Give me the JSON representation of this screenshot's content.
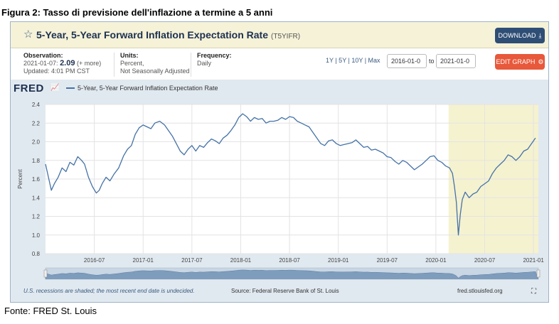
{
  "figure_title": "Figura 2: Tasso di previsione dell'inflazione a termine a 5 anni",
  "source_note": "Fonte: FRED St. Louis",
  "header": {
    "title": "5-Year, 5-Year Forward Inflation Expectation Rate",
    "series_id": "(T5YIFR)",
    "download_label": "DOWNLOAD"
  },
  "meta": {
    "observation_label": "Observation:",
    "observation_date": "2021-01-07:",
    "observation_value": "2.09",
    "observation_more": "(+ more)",
    "updated": "Updated: 4:01 PM CST",
    "units_label": "Units:",
    "units_line1": "Percent,",
    "units_line2": "Not Seasonally Adjusted",
    "frequency_label": "Frequency:",
    "frequency_value": "Daily",
    "ranges": "1Y | 5Y | 10Y | Max",
    "date_from": "2016-01-0",
    "to_label": "to",
    "date_to": "2021-01-0",
    "edit_label": "EDIT GRAPH"
  },
  "fred_logo": "FRED",
  "footer": {
    "recession_note": "U.S. recessions are shaded; the most recent end date is undecided.",
    "source": "Source: Federal Reserve Bank of St. Louis",
    "site": "fred.stlouisfed.org"
  },
  "colors": {
    "line": "#4572a7",
    "recession": "#f5f2d0",
    "accent": "#e8583a",
    "navy": "#2f4e75"
  },
  "chart_data": {
    "type": "line",
    "ylabel": "Percent",
    "ylim": [
      0.8,
      2.4
    ],
    "yticks": [
      0.8,
      1.0,
      1.2,
      1.4,
      1.6,
      1.8,
      2.0,
      2.2,
      2.4
    ],
    "xlim": [
      2016.0,
      2021.05
    ],
    "xtick_labels": [
      "2016-07",
      "2017-01",
      "2017-07",
      "2018-01",
      "2018-07",
      "2019-01",
      "2019-07",
      "2020-01",
      "2020-07",
      "2021-01"
    ],
    "xtick_positions": [
      2016.5,
      2017.0,
      2017.5,
      2018.0,
      2018.5,
      2019.0,
      2019.5,
      2020.0,
      2020.5,
      2021.0
    ],
    "grid": true,
    "recession": [
      2020.13,
      2021.05
    ],
    "series": [
      {
        "name": "5-Year, 5-Year Forward Inflation Expectation Rate",
        "x": [
          2016.0,
          2016.03,
          2016.06,
          2016.09,
          2016.13,
          2016.17,
          2016.21,
          2016.25,
          2016.29,
          2016.33,
          2016.37,
          2016.4,
          2016.44,
          2016.48,
          2016.52,
          2016.55,
          2016.58,
          2016.62,
          2016.66,
          2016.7,
          2016.75,
          2016.8,
          2016.84,
          2016.88,
          2016.92,
          2016.96,
          2017.0,
          2017.04,
          2017.08,
          2017.12,
          2017.17,
          2017.22,
          2017.26,
          2017.3,
          2017.34,
          2017.38,
          2017.42,
          2017.46,
          2017.5,
          2017.54,
          2017.58,
          2017.62,
          2017.66,
          2017.7,
          2017.74,
          2017.78,
          2017.82,
          2017.86,
          2017.9,
          2017.94,
          2017.98,
          2018.02,
          2018.06,
          2018.1,
          2018.14,
          2018.18,
          2018.22,
          2018.26,
          2018.3,
          2018.34,
          2018.38,
          2018.42,
          2018.46,
          2018.5,
          2018.54,
          2018.58,
          2018.62,
          2018.66,
          2018.7,
          2018.74,
          2018.78,
          2018.82,
          2018.86,
          2018.9,
          2018.94,
          2018.98,
          2019.02,
          2019.06,
          2019.1,
          2019.14,
          2019.18,
          2019.22,
          2019.26,
          2019.3,
          2019.34,
          2019.38,
          2019.42,
          2019.46,
          2019.5,
          2019.54,
          2019.58,
          2019.62,
          2019.66,
          2019.7,
          2019.74,
          2019.78,
          2019.82,
          2019.86,
          2019.9,
          2019.94,
          2019.98,
          2020.02,
          2020.06,
          2020.1,
          2020.14,
          2020.17,
          2020.19,
          2020.21,
          2020.23,
          2020.25,
          2020.27,
          2020.3,
          2020.34,
          2020.38,
          2020.42,
          2020.46,
          2020.5,
          2020.54,
          2020.58,
          2020.62,
          2020.66,
          2020.7,
          2020.74,
          2020.78,
          2020.82,
          2020.86,
          2020.9,
          2020.94,
          2020.98,
          2021.02
        ],
        "y": [
          1.76,
          1.62,
          1.48,
          1.55,
          1.62,
          1.72,
          1.68,
          1.78,
          1.75,
          1.84,
          1.8,
          1.76,
          1.62,
          1.52,
          1.45,
          1.48,
          1.55,
          1.62,
          1.58,
          1.65,
          1.72,
          1.85,
          1.92,
          1.96,
          2.08,
          2.15,
          2.18,
          2.16,
          2.14,
          2.2,
          2.22,
          2.18,
          2.12,
          2.06,
          1.98,
          1.9,
          1.86,
          1.92,
          1.96,
          1.9,
          1.96,
          1.94,
          1.99,
          2.03,
          2.01,
          1.98,
          2.04,
          2.07,
          2.12,
          2.18,
          2.26,
          2.3,
          2.27,
          2.22,
          2.26,
          2.24,
          2.25,
          2.2,
          2.22,
          2.22,
          2.23,
          2.26,
          2.24,
          2.27,
          2.26,
          2.22,
          2.2,
          2.18,
          2.16,
          2.1,
          2.04,
          1.98,
          1.96,
          2.01,
          2.02,
          1.98,
          1.96,
          1.97,
          1.98,
          1.99,
          2.02,
          1.98,
          1.94,
          1.95,
          1.91,
          1.92,
          1.9,
          1.88,
          1.84,
          1.83,
          1.79,
          1.76,
          1.8,
          1.78,
          1.74,
          1.7,
          1.73,
          1.76,
          1.8,
          1.84,
          1.85,
          1.8,
          1.78,
          1.74,
          1.72,
          1.66,
          1.52,
          1.35,
          1.0,
          1.22,
          1.38,
          1.46,
          1.4,
          1.44,
          1.46,
          1.52,
          1.55,
          1.58,
          1.66,
          1.72,
          1.76,
          1.8,
          1.86,
          1.84,
          1.8,
          1.84,
          1.9,
          1.92,
          1.98,
          2.04
        ]
      }
    ]
  }
}
